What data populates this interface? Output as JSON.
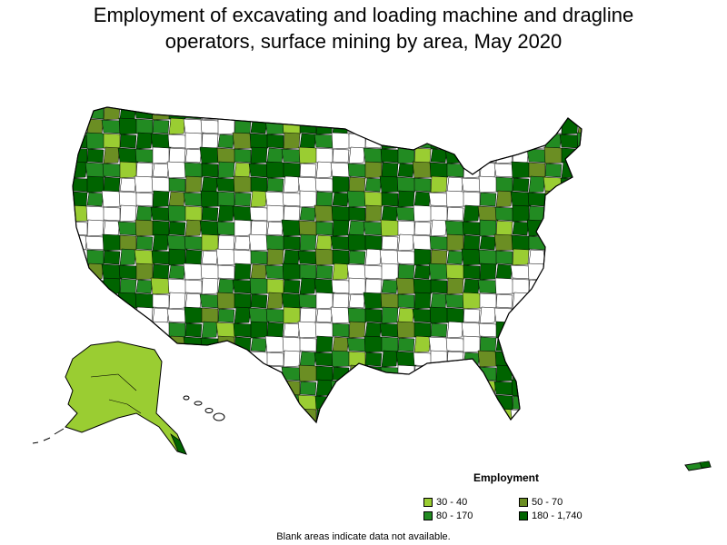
{
  "title_line1": "Employment of excavating and loading machine and dragline",
  "title_line2": "operators, surface mining by area, May 2020",
  "legend": {
    "title": "Employment",
    "items": [
      {
        "label": "30 - 40",
        "color": "#9acd32"
      },
      {
        "label": "50 - 70",
        "color": "#6b8e23"
      },
      {
        "label": "80 - 170",
        "color": "#228b22"
      },
      {
        "label": "180 - 1,740",
        "color": "#006400"
      }
    ]
  },
  "footnote": "Blank areas indicate data not available.",
  "colors": {
    "outline": "#000000",
    "nodata": "#ffffff"
  }
}
